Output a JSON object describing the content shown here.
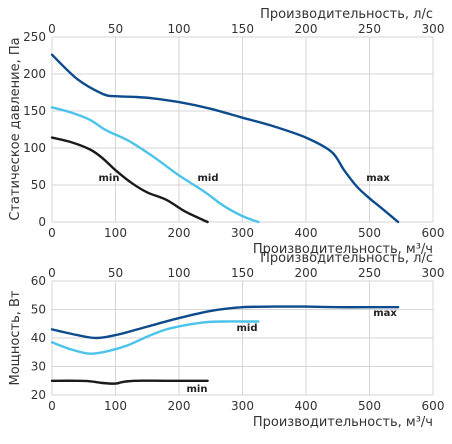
{
  "chart_data": [
    {
      "type": "line",
      "xlabel": "Производительность, м³/ч",
      "x2label": "Производительность, л/с",
      "ylabel": "Статическое давление, Па",
      "xlim": [
        0,
        600
      ],
      "x2lim": [
        0,
        300
      ],
      "ylim": [
        0,
        250
      ],
      "xticks": [
        "0",
        "100",
        "200",
        "300",
        "400",
        "500",
        "600"
      ],
      "x2ticks": [
        "0",
        "50",
        "100",
        "150",
        "200",
        "250",
        "300"
      ],
      "yticks": [
        "0",
        "50",
        "100",
        "150",
        "200",
        "250"
      ],
      "grid": true,
      "series": [
        {
          "name": "min",
          "color": "#1a1a1a",
          "x": [
            0,
            30,
            60,
            80,
            100,
            125,
            150,
            180,
            210,
            245
          ],
          "y": [
            114,
            108,
            98,
            86,
            70,
            53,
            40,
            30,
            14,
            0
          ]
        },
        {
          "name": "mid",
          "color": "#4cc3ea",
          "x": [
            0,
            30,
            60,
            85,
            120,
            160,
            200,
            240,
            270,
            300,
            325
          ],
          "y": [
            155,
            148,
            138,
            124,
            110,
            88,
            63,
            41,
            22,
            8,
            0
          ]
        },
        {
          "name": "max",
          "color": "#0d4b8c",
          "x": [
            0,
            40,
            80,
            100,
            130,
            160,
            200,
            250,
            300,
            350,
            400,
            440,
            460,
            480,
            500,
            520,
            545
          ],
          "y": [
            226,
            193,
            173,
            170,
            169,
            167,
            162,
            153,
            141,
            129,
            114,
            95,
            70,
            48,
            32,
            18,
            0
          ]
        }
      ]
    },
    {
      "type": "line",
      "xlabel": "Производительность, м³/ч",
      "x2label": "Производительность, л/с",
      "ylabel": "Мощность, Вт",
      "xlim": [
        0,
        600
      ],
      "x2lim": [
        0,
        300
      ],
      "ylim": [
        20,
        60
      ],
      "xticks": [
        "0",
        "100",
        "200",
        "300",
        "400",
        "500",
        "600"
      ],
      "x2ticks": [
        "0",
        "50",
        "100",
        "150",
        "200",
        "250",
        "300"
      ],
      "yticks": [
        "20",
        "30",
        "40",
        "50",
        "60"
      ],
      "grid": true,
      "series": [
        {
          "name": "min",
          "color": "#1a1a1a",
          "x": [
            0,
            40,
            60,
            80,
            100,
            110,
            130,
            180,
            245
          ],
          "y": [
            25,
            25,
            24.8,
            24.2,
            24,
            24.5,
            25,
            25,
            25
          ]
        },
        {
          "name": "mid",
          "color": "#4cc3ea",
          "x": [
            0,
            30,
            60,
            90,
            120,
            150,
            180,
            210,
            240,
            270,
            300,
            325
          ],
          "y": [
            38.5,
            36,
            34.5,
            35.5,
            37.5,
            40.5,
            43,
            44.5,
            45.5,
            45.8,
            45.8,
            45.8
          ]
        },
        {
          "name": "max",
          "color": "#0d4b8c",
          "x": [
            0,
            40,
            70,
            100,
            150,
            200,
            250,
            300,
            350,
            400,
            450,
            500,
            545
          ],
          "y": [
            43,
            41,
            40,
            41,
            44,
            47,
            49.5,
            50.8,
            51,
            51,
            50.8,
            50.8,
            50.8
          ]
        }
      ]
    }
  ]
}
